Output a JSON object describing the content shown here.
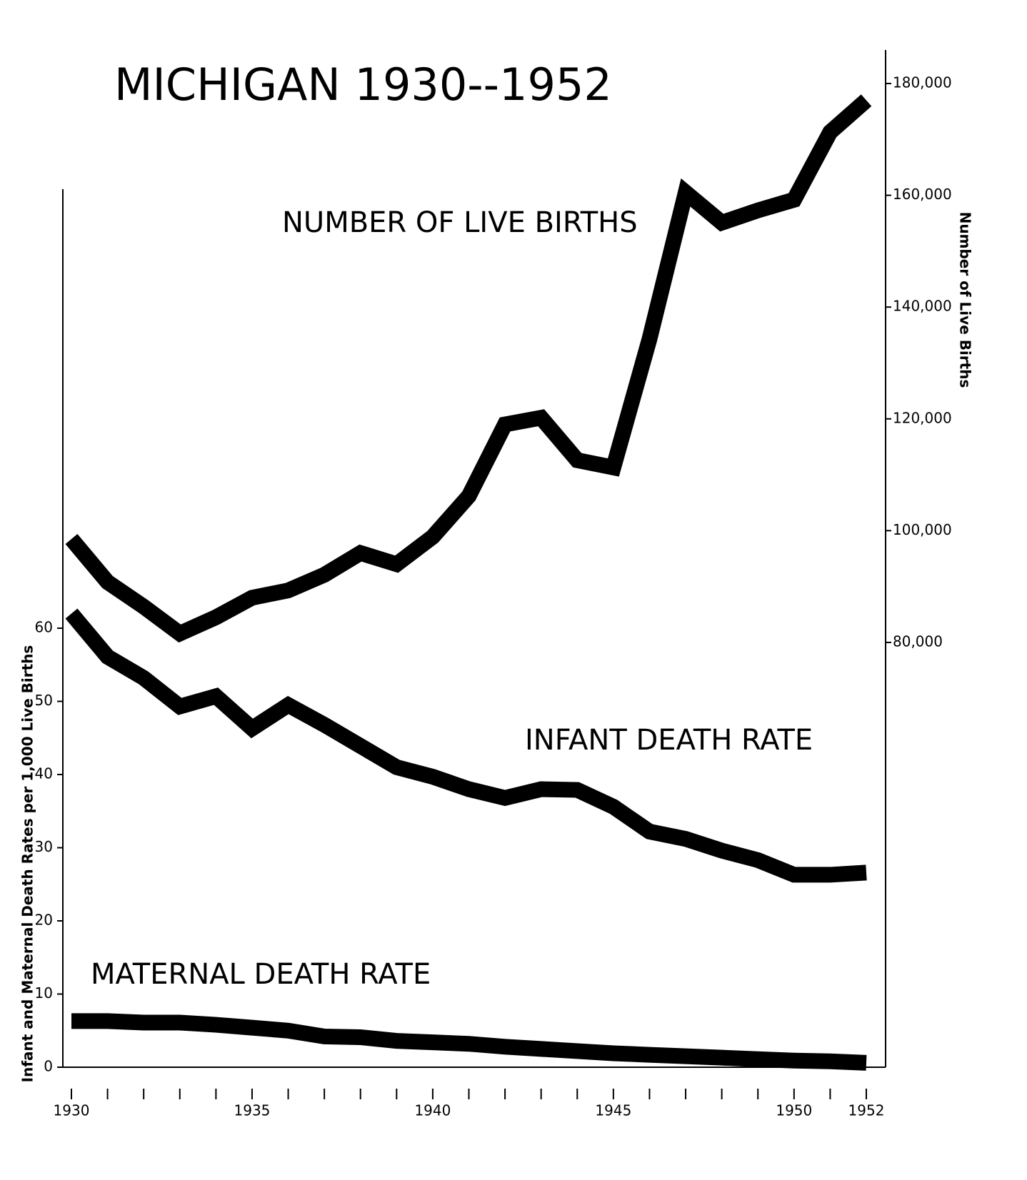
{
  "chart_data": {
    "type": "line",
    "title": "MICHIGAN 1930--1952",
    "ylabel": "Infant and Maternal Death Rates per 1,000 Live Births",
    "y2label": "Number of Live Births",
    "x": [
      1930,
      1931,
      1932,
      1933,
      1934,
      1935,
      1936,
      1937,
      1938,
      1939,
      1940,
      1941,
      1942,
      1943,
      1944,
      1945,
      1946,
      1947,
      1948,
      1949,
      1950,
      1951,
      1952
    ],
    "xlim": [
      1930,
      1952
    ],
    "xticks": [
      1930,
      1935,
      1940,
      1945,
      1950,
      1952
    ],
    "ylim": [
      0,
      120
    ],
    "yticks": [
      0,
      10,
      20,
      30,
      40,
      50,
      60
    ],
    "y2lim": [
      4000,
      186000
    ],
    "y2ticks": [
      {
        "value": 80000,
        "label": "80,000"
      },
      {
        "value": 100000,
        "label": "100,000"
      },
      {
        "value": 120000,
        "label": "120,000"
      },
      {
        "value": 140000,
        "label": "140,000"
      },
      {
        "value": 160000,
        "label": "160,000"
      },
      {
        "value": 180000,
        "label": "180,000"
      }
    ],
    "series": [
      {
        "name": "NUMBER OF LIVE BIRTHS",
        "color": "#000000",
        "axis": "y2",
        "values": [
          98500,
          90800,
          86400,
          81600,
          84500,
          88000,
          89300,
          92100,
          96000,
          94000,
          98900,
          106200,
          119000,
          120200,
          112600,
          111300,
          134300,
          160500,
          155100,
          157300,
          159200,
          171300,
          177000
        ]
      },
      {
        "name": "INFANT DEATH RATE",
        "color": "#000000",
        "values": [
          62.0,
          56.1,
          53.2,
          49.3,
          50.7,
          46.3,
          49.5,
          46.8,
          43.9,
          41.0,
          39.7,
          38.0,
          36.8,
          38.0,
          37.9,
          35.6,
          32.2,
          31.2,
          29.6,
          28.3,
          26.3,
          26.3,
          26.6
        ]
      },
      {
        "name": "MATERNAL DEATH RATE",
        "color": "#000000",
        "values": [
          6.3,
          6.3,
          6.1,
          6.1,
          5.8,
          5.4,
          5.0,
          4.2,
          4.1,
          3.6,
          3.4,
          3.2,
          2.8,
          2.5,
          2.2,
          1.9,
          1.7,
          1.5,
          1.3,
          1.1,
          0.9,
          0.8,
          0.6
        ]
      }
    ]
  }
}
